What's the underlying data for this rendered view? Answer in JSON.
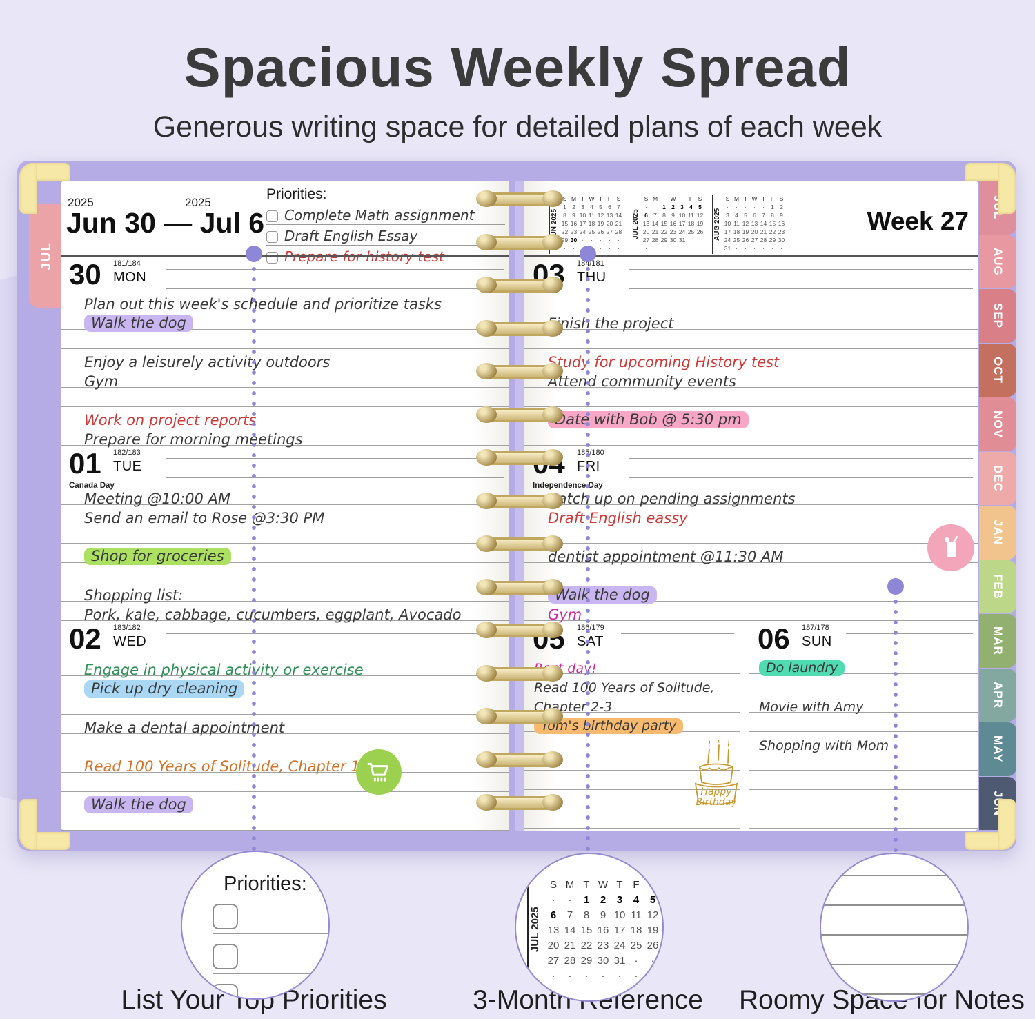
{
  "header": {
    "title": "Spacious Weekly Spread",
    "subtitle": "Generous writing space for detailed plans of each week"
  },
  "left_page": {
    "side_tab": "JUL",
    "year_start": "2025",
    "year_end": "2025",
    "date_range": "Jun 30 — Jul 6",
    "priorities": {
      "label": "Priorities:",
      "items": [
        {
          "text": "Complete Math assignment",
          "ink": "black"
        },
        {
          "text": "Draft English Essay",
          "ink": "black"
        },
        {
          "text": "Prepare for history test",
          "ink": "red"
        }
      ]
    },
    "days": [
      {
        "num": "30",
        "sup": "181/184",
        "name": "MON",
        "holiday": "",
        "lines": [
          {
            "t": "Plan out this week's schedule and prioritize tasks",
            "ink": "black",
            "hl": ""
          },
          {
            "t": "Walk the dog",
            "ink": "black",
            "hl": "purple"
          },
          {
            "t": "",
            "ink": "black",
            "hl": ""
          },
          {
            "t": "Enjoy a leisurely activity outdoors",
            "ink": "black",
            "hl": ""
          },
          {
            "t": "Gym",
            "ink": "black",
            "hl": ""
          },
          {
            "t": "",
            "ink": "black",
            "hl": ""
          },
          {
            "t": "Work on project reports",
            "ink": "red",
            "hl": ""
          },
          {
            "t": "Prepare for morning meetings",
            "ink": "black",
            "hl": ""
          }
        ]
      },
      {
        "num": "01",
        "sup": "182/183",
        "name": "TUE",
        "holiday": "Canada Day",
        "lines": [
          {
            "t": "Meeting @10:00 AM",
            "ink": "black",
            "hl": ""
          },
          {
            "t": "Send an email to Rose @3:30 PM",
            "ink": "black",
            "hl": ""
          },
          {
            "t": "",
            "ink": "black",
            "hl": ""
          },
          {
            "t": "Shop for groceries",
            "ink": "black",
            "hl": "green"
          },
          {
            "t": "",
            "ink": "black",
            "hl": ""
          },
          {
            "t": "Shopping list:",
            "ink": "black",
            "hl": ""
          },
          {
            "t": "Pork, kale, cabbage, cucumbers, eggplant, Avocado",
            "ink": "black",
            "hl": ""
          }
        ]
      },
      {
        "num": "02",
        "sup": "183/182",
        "name": "WED",
        "holiday": "",
        "lines": [
          {
            "t": "Engage in physical activity or exercise",
            "ink": "green",
            "hl": ""
          },
          {
            "t": "Pick up dry cleaning",
            "ink": "black",
            "hl": "blue"
          },
          {
            "t": "",
            "ink": "black",
            "hl": ""
          },
          {
            "t": "Make a dental appointment",
            "ink": "black",
            "hl": ""
          },
          {
            "t": "",
            "ink": "black",
            "hl": ""
          },
          {
            "t": "Read 100 Years of Solitude, Chapter 1",
            "ink": "orange",
            "hl": ""
          },
          {
            "t": "",
            "ink": "black",
            "hl": ""
          },
          {
            "t": "Walk the dog",
            "ink": "black",
            "hl": "purple"
          },
          {
            "t": "",
            "ink": "black",
            "hl": ""
          }
        ]
      }
    ]
  },
  "right_page": {
    "week_label": "Week 27",
    "mini_calendars": [
      {
        "month": "JUN 2025",
        "dow": [
          "S",
          "M",
          "T",
          "W",
          "T",
          "F",
          "S"
        ],
        "weeks": [
          "1 2 3 4 5 6 7",
          "8 9 10 11 12 13 14",
          "15 16 17 18 19 20 21",
          "22 23 24 25 26 27 28",
          "29 30 · · · · ·",
          "· · · · · · ·"
        ],
        "bold": [
          "30"
        ]
      },
      {
        "month": "JUL 2025",
        "dow": [
          "S",
          "M",
          "T",
          "W",
          "T",
          "F",
          "S"
        ],
        "weeks": [
          "· · 1 2 3 4 5",
          "6 7 8 9 10 11 12",
          "13 14 15 16 17 18 19",
          "20 21 22 23 24 25 26",
          "27 28 29 30 31 · ·",
          "· · · · · · ·"
        ],
        "bold": [
          "1",
          "2",
          "3",
          "4",
          "5",
          "6"
        ]
      },
      {
        "month": "AUG 2025",
        "dow": [
          "S",
          "M",
          "T",
          "W",
          "T",
          "F",
          "S"
        ],
        "weeks": [
          "· · · · · 1 2",
          "3 4 5 6 7 8 9",
          "10 11 12 13 14 15 16",
          "17 18 19 20 21 22 23",
          "24 25 26 27 28 29 30",
          "31 · · · · · ·"
        ],
        "bold": []
      }
    ],
    "days": [
      {
        "num": "03",
        "sup": "184/181",
        "name": "THU",
        "holiday": "",
        "lines": [
          {
            "t": "",
            "ink": "black",
            "hl": ""
          },
          {
            "t": "Finish the project",
            "ink": "black",
            "hl": ""
          },
          {
            "t": "",
            "ink": "black",
            "hl": ""
          },
          {
            "t": "Study for upcoming History test",
            "ink": "red",
            "hl": ""
          },
          {
            "t": "Attend community events",
            "ink": "black",
            "hl": ""
          },
          {
            "t": "",
            "ink": "black",
            "hl": ""
          },
          {
            "t": "Date with Bob @ 5:30 pm",
            "ink": "black",
            "hl": "pink"
          },
          {
            "t": "",
            "ink": "black",
            "hl": ""
          }
        ]
      },
      {
        "num": "04",
        "sup": "185/180",
        "name": "FRI",
        "holiday": "Independence Day",
        "lines": [
          {
            "t": "Catch up on pending assignments",
            "ink": "black",
            "hl": ""
          },
          {
            "t": "Draft English eassy",
            "ink": "red",
            "hl": ""
          },
          {
            "t": "",
            "ink": "black",
            "hl": ""
          },
          {
            "t": "dentist appointment @11:30 AM",
            "ink": "black",
            "hl": ""
          },
          {
            "t": "",
            "ink": "black",
            "hl": ""
          },
          {
            "t": "Walk the dog",
            "ink": "black",
            "hl": "purple"
          },
          {
            "t": "Gym",
            "ink": "magenta",
            "hl": ""
          }
        ]
      }
    ],
    "weekend": [
      {
        "num": "05",
        "sup": "186/179",
        "name": "SAT",
        "holiday": "",
        "lines": [
          {
            "t": "Rest day!",
            "ink": "magenta",
            "hl": ""
          },
          {
            "t": "Read 100 Years of Solitude,",
            "ink": "black",
            "hl": ""
          },
          {
            "t": "Chapter 2-3",
            "ink": "black",
            "hl": ""
          },
          {
            "t": "Tom's birthday party",
            "ink": "black",
            "hl": "orange"
          },
          {
            "t": "",
            "ink": "black",
            "hl": ""
          },
          {
            "t": "",
            "ink": "black",
            "hl": ""
          },
          {
            "t": "",
            "ink": "black",
            "hl": ""
          },
          {
            "t": "",
            "ink": "black",
            "hl": ""
          },
          {
            "t": "",
            "ink": "black",
            "hl": ""
          }
        ]
      },
      {
        "num": "06",
        "sup": "187/178",
        "name": "SUN",
        "holiday": "",
        "lines": [
          {
            "t": "Do laundry",
            "ink": "black",
            "hl": "teal"
          },
          {
            "t": "",
            "ink": "black",
            "hl": ""
          },
          {
            "t": "Movie with Amy",
            "ink": "black",
            "hl": ""
          },
          {
            "t": "",
            "ink": "black",
            "hl": ""
          },
          {
            "t": "Shopping with Mom",
            "ink": "black",
            "hl": ""
          },
          {
            "t": "",
            "ink": "black",
            "hl": ""
          },
          {
            "t": "",
            "ink": "black",
            "hl": ""
          },
          {
            "t": "",
            "ink": "black",
            "hl": ""
          },
          {
            "t": "",
            "ink": "black",
            "hl": ""
          }
        ]
      }
    ]
  },
  "tabs": [
    {
      "label": "JUL",
      "color": "#df8f9b"
    },
    {
      "label": "AUG",
      "color": "#e798a1"
    },
    {
      "label": "SEP",
      "color": "#d87f88"
    },
    {
      "label": "OCT",
      "color": "#c4705f"
    },
    {
      "label": "NOV",
      "color": "#e08d95"
    },
    {
      "label": "DEC",
      "color": "#eeaaa9"
    },
    {
      "label": "JAN",
      "color": "#f2c48d"
    },
    {
      "label": "FEB",
      "color": "#bcd788"
    },
    {
      "label": "MAR",
      "color": "#92b06f"
    },
    {
      "label": "APR",
      "color": "#82a8a0"
    },
    {
      "label": "MAY",
      "color": "#5e8a94"
    },
    {
      "label": "JUN",
      "color": "#4e5a72"
    }
  ],
  "stickers": {
    "cart": "shopping-cart",
    "drink": "drink-glass",
    "cake_lines": [
      "Happy",
      "Birthday"
    ]
  },
  "callouts": [
    {
      "caption": "List Your Top Priorities",
      "label": "Priorities:",
      "checkbox_count": 3
    },
    {
      "caption": "3-Month Reference",
      "calendar": {
        "month": "JUL 2025",
        "dow": [
          "S",
          "M",
          "T",
          "W",
          "T",
          "F",
          "S"
        ],
        "weeks": [
          "· · 1 2 3 4 5",
          "6 7 8 9 10 11 12",
          "13 14 15 16 17 18 19",
          "20 21 22 23 24 25 26",
          "27 28 29 30 31 · ·",
          "· · · · · · ·"
        ],
        "bold": [
          "1",
          "2",
          "3",
          "4",
          "5",
          "6"
        ]
      }
    },
    {
      "caption": "Roomy Space for Notes",
      "note_lines": 5
    }
  ],
  "colors": {
    "background": "#e9e6f7",
    "cover": "#b5ace5",
    "accent": "#8e86d6",
    "ink_red": "#cf3a3a",
    "ink_green": "#2e9155",
    "ink_orange": "#d4732a",
    "ink_magenta": "#d22ba4",
    "hl_purple": "#c9b6f0",
    "hl_green": "#abe060",
    "hl_blue": "#a9d7f4",
    "hl_pink": "#f7a6c6",
    "hl_orange": "#f7ba6e",
    "hl_teal": "#4fdcb2"
  }
}
